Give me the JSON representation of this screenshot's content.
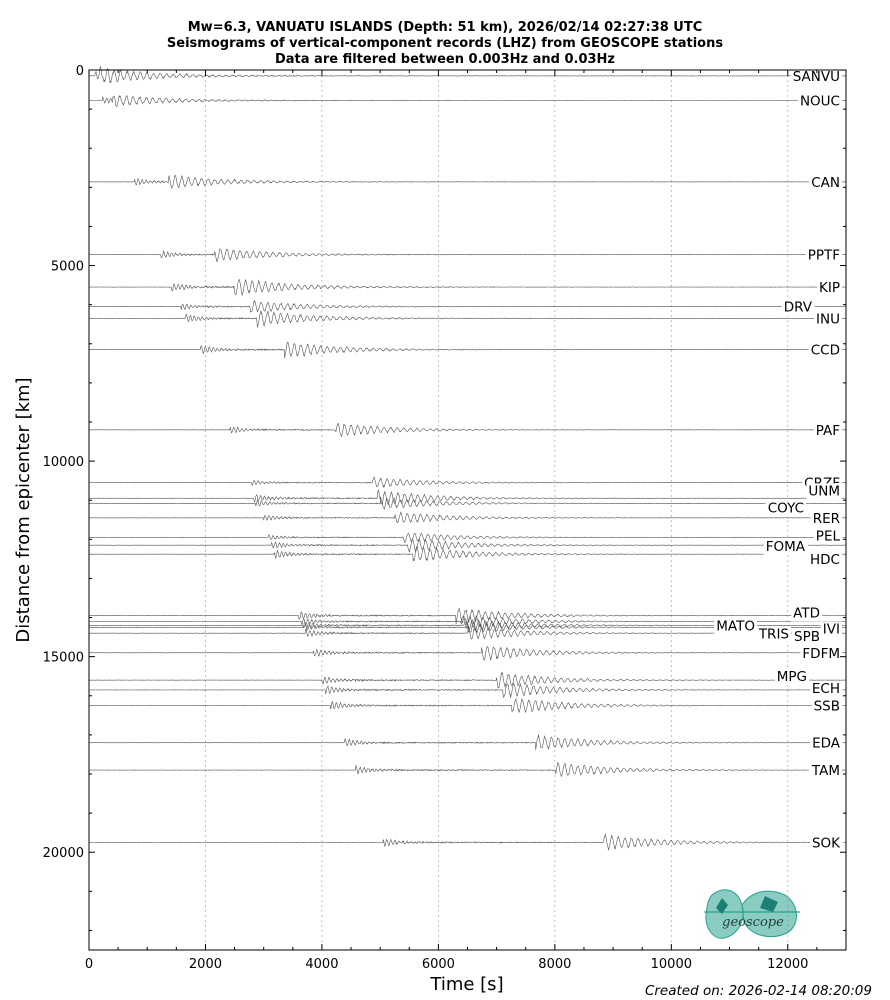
{
  "chart_data": {
    "type": "line",
    "title": [
      "Mw=6.3, VANUATU ISLANDS (Depth: 51 km), 2026/02/14 02:27:38 UTC",
      "Seismograms of vertical-component records (LHZ) from GEOSCOPE stations",
      "Data are filtered between 0.003Hz and 0.03Hz"
    ],
    "xlabel": "Time [s]",
    "ylabel": "Distance from epicenter [km]",
    "xlim": [
      0,
      13000
    ],
    "ylim": [
      22500,
      0
    ],
    "y_inverted": true,
    "xticks": [
      0,
      2000,
      4000,
      6000,
      8000,
      10000,
      12000
    ],
    "yticks": [
      0,
      5000,
      10000,
      15000,
      20000
    ],
    "grid": "x-dotted",
    "line_color": "#555555",
    "stations": [
      {
        "name": "SANVU",
        "distance": 150,
        "arrival": 100,
        "amp": 9
      },
      {
        "name": "NOUC",
        "distance": 780,
        "arrival": 230,
        "amp": 7
      },
      {
        "name": "CAN",
        "distance": 2860,
        "arrival": 780,
        "amp": 8
      },
      {
        "name": "PPTF",
        "distance": 4720,
        "arrival": 1230,
        "amp": 8
      },
      {
        "name": "KIP",
        "distance": 5550,
        "arrival": 1420,
        "amp": 10
      },
      {
        "name": "DRV",
        "distance": 6050,
        "arrival": 1580,
        "amp": 7
      },
      {
        "name": "INU",
        "distance": 6350,
        "arrival": 1650,
        "amp": 9
      },
      {
        "name": "CCD",
        "distance": 7150,
        "arrival": 1920,
        "amp": 9
      },
      {
        "name": "PAF",
        "distance": 9200,
        "arrival": 2420,
        "amp": 8
      },
      {
        "name": "CRZF",
        "distance": 10550,
        "arrival": 2780,
        "amp": 6
      },
      {
        "name": "UNM",
        "distance": 10950,
        "arrival": 2830,
        "amp": 9
      },
      {
        "name": "COYC",
        "distance": 11080,
        "arrival": 2860,
        "amp": 7
      },
      {
        "name": "RER",
        "distance": 11450,
        "arrival": 3000,
        "amp": 7
      },
      {
        "name": "PEL",
        "distance": 11950,
        "arrival": 3080,
        "amp": 6
      },
      {
        "name": "FOMA",
        "distance": 12150,
        "arrival": 3130,
        "amp": 8
      },
      {
        "name": "HDC",
        "distance": 12380,
        "arrival": 3180,
        "amp": 9
      },
      {
        "name": "ATD",
        "distance": 13950,
        "arrival": 3600,
        "amp": 9
      },
      {
        "name": "MATO",
        "distance": 14100,
        "arrival": 3650,
        "amp": 8
      },
      {
        "name": "IVI",
        "distance": 14200,
        "arrival": 3680,
        "amp": 8
      },
      {
        "name": "TRIS",
        "distance": 14250,
        "arrival": 3700,
        "amp": 7
      },
      {
        "name": "SPB",
        "distance": 14400,
        "arrival": 3720,
        "amp": 8
      },
      {
        "name": "FDFM",
        "distance": 14900,
        "arrival": 3850,
        "amp": 9
      },
      {
        "name": "MPG",
        "distance": 15600,
        "arrival": 4000,
        "amp": 9
      },
      {
        "name": "ECH",
        "distance": 15850,
        "arrival": 4060,
        "amp": 9
      },
      {
        "name": "SSB",
        "distance": 16250,
        "arrival": 4150,
        "amp": 9
      },
      {
        "name": "EDA",
        "distance": 17200,
        "arrival": 4380,
        "amp": 9
      },
      {
        "name": "TAM",
        "distance": 17900,
        "arrival": 4580,
        "amp": 9
      },
      {
        "name": "SOK",
        "distance": 19750,
        "arrival": 5050,
        "amp": 9
      }
    ]
  },
  "logo": {
    "text": "geoscope",
    "color": "#2aa090"
  },
  "footer": {
    "created": "Created on: 2026-02-14 08:20:09"
  }
}
